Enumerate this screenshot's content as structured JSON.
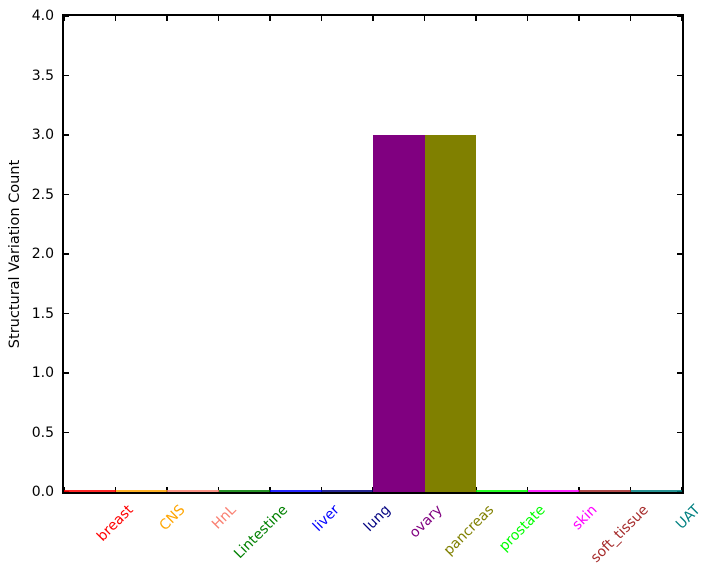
{
  "chart_data": {
    "type": "bar",
    "title": "",
    "ylabel": "Structural Variation Count",
    "xlabel": "",
    "ylim": [
      0,
      4
    ],
    "ytick_labels": [
      "0.0",
      "0.5",
      "1.0",
      "1.5",
      "2.0",
      "2.5",
      "3.0",
      "3.5",
      "4.0"
    ],
    "categories": [
      "breast",
      "CNS",
      "HnL",
      "Lintestine",
      "liver",
      "lung",
      "ovary",
      "pancreas",
      "prostate",
      "skin",
      "soft_tissue",
      "UAT"
    ],
    "values": [
      0,
      0,
      0,
      0,
      0,
      0,
      3,
      3,
      0,
      0,
      0,
      0
    ],
    "colors": [
      "#ff0000",
      "#ffa500",
      "#fa8072",
      "#008000",
      "#0000ff",
      "#000080",
      "#800080",
      "#808000",
      "#00ff00",
      "#ff00ff",
      "#a52a2a",
      "#008080"
    ],
    "bar_align": "edge",
    "xtick_rotation_deg": 45,
    "grid": false,
    "legend": "none",
    "axis_color": "#000000",
    "background_color": "#ffffff"
  }
}
